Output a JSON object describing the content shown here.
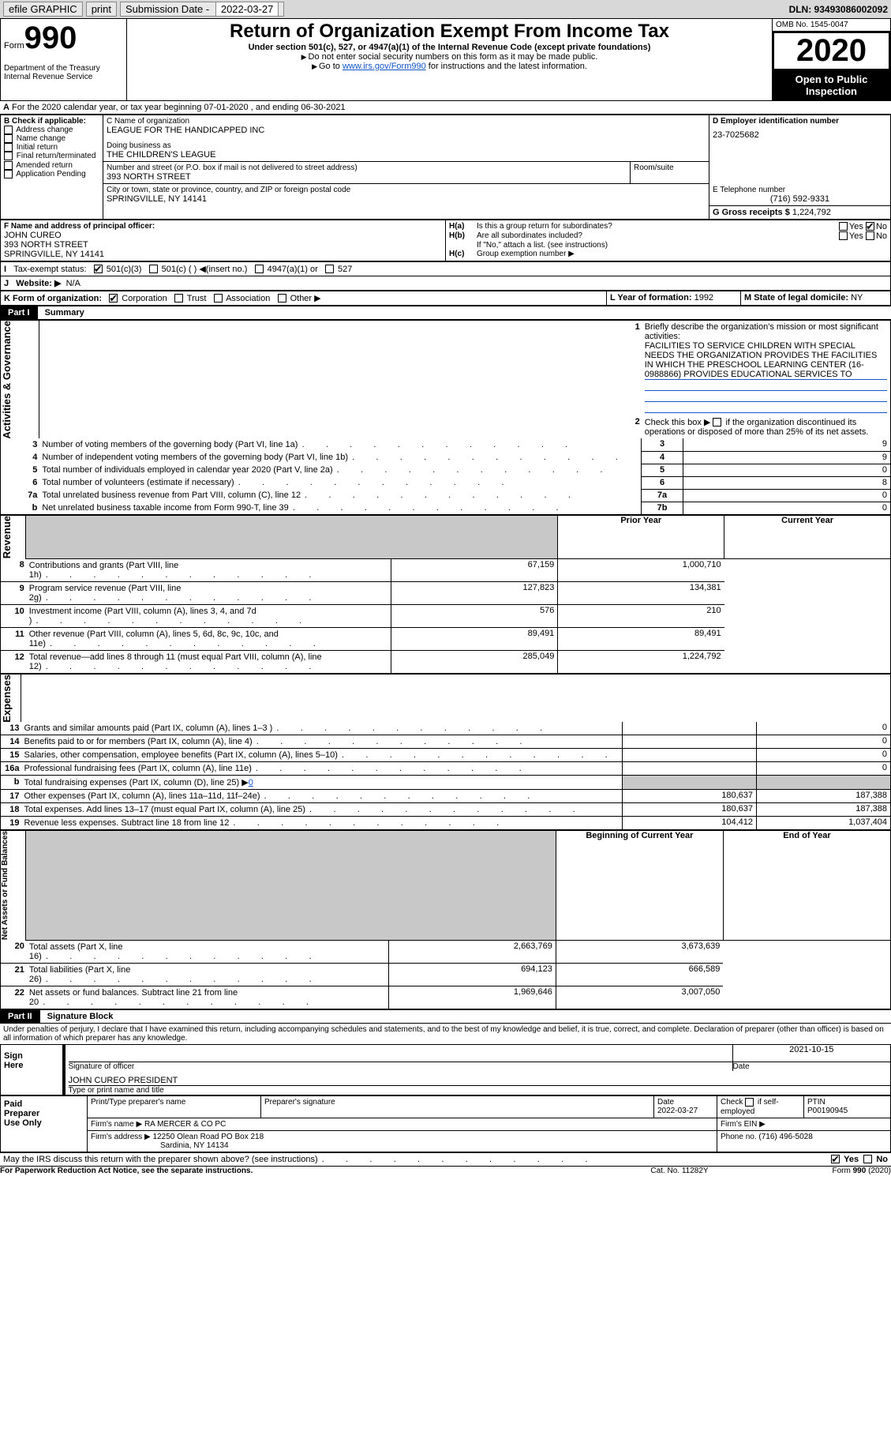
{
  "topbar": {
    "efile": "efile GRAPHIC",
    "print": "print",
    "subdate_lbl": "Submission Date -",
    "subdate": "2022-03-27",
    "dln": "DLN: 93493086002092"
  },
  "header": {
    "form": "990",
    "form_prefix": "Form",
    "dept": "Department of the Treasury\nInternal Revenue Service",
    "title": "Return of Organization Exempt From Income Tax",
    "sub1": "Under section 501(c), 527, or 4947(a)(1) of the Internal Revenue Code (except private foundations)",
    "sub2": "Do not enter social security numbers on this form as it may be made public.",
    "sub3_pre": "Go to ",
    "sub3_link": "www.irs.gov/Form990",
    "sub3_post": " for instructions and the latest information.",
    "omb": "OMB No. 1545-0047",
    "year": "2020",
    "openpub": "Open to Public Inspection"
  },
  "line_a": "For the 2020 calendar year, or tax year beginning 07-01-2020     , and ending 06-30-2021",
  "box_b": {
    "title": "B Check if applicable:",
    "items": [
      "Address change",
      "Name change",
      "Initial return",
      "Final return/terminated",
      "Amended return",
      "Application Pending"
    ]
  },
  "box_c": {
    "label_name": "C Name of organization",
    "name": "LEAGUE FOR THE HANDICAPPED INC",
    "dba_lbl": "Doing business as",
    "dba": "THE CHILDREN'S LEAGUE",
    "street_lbl": "Number and street (or P.O. box if mail is not delivered to street address)",
    "street": "393 NORTH STREET",
    "room_lbl": "Room/suite",
    "city_lbl": "City or town, state or province, country, and ZIP or foreign postal code",
    "city": "SPRINGVILLE, NY  14141"
  },
  "box_d": {
    "label": "D Employer identification number",
    "val": "23-7025682"
  },
  "box_e": {
    "label": "E Telephone number",
    "val": "(716) 592-9331"
  },
  "box_g": {
    "label": "G Gross receipts $",
    "val": "1,224,792"
  },
  "box_f": {
    "label": "F Name and address of principal officer:",
    "name": "JOHN CUREO",
    "street": "393 NORTH STREET",
    "city": "SPRINGVILLE, NY  14141"
  },
  "box_h": {
    "a_lbl": "Is this a group return for subordinates?",
    "b_lbl": "Are all subordinates included?",
    "b_note": "If \"No,\" attach a list. (see instructions)",
    "c_lbl": "Group exemption number ▶",
    "yes": "Yes",
    "no": "No"
  },
  "line_i": {
    "label": "Tax-exempt status:",
    "opts": [
      "501(c)(3)",
      "501(c) (   ) ◀(insert no.)",
      "4947(a)(1) or",
      "527"
    ]
  },
  "line_j": {
    "label": "Website: ▶",
    "val": "N/A"
  },
  "line_k": {
    "label": "K Form of organization:",
    "opts": [
      "Corporation",
      "Trust",
      "Association",
      "Other ▶"
    ]
  },
  "line_l": {
    "label": "L Year of formation:",
    "val": "1992"
  },
  "line_m": {
    "label": "M State of legal domicile:",
    "val": "NY"
  },
  "part1": {
    "label": "Part I",
    "title": "Summary",
    "q1": "Briefly describe the organization's mission or most significant activities:",
    "mission": "FACILITIES TO SERVICE CHILDREN WITH SPECIAL NEEDS THE ORGANIZATION PROVIDES THE FACILITIES IN WHICH THE PRESCHOOL LEARNING CENTER (16-0988866) PROVIDES EDUCATIONAL SERVICES TO",
    "q2": "Check this box ▶          if the organization discontinued its operations or disposed of more than 25% of its net assets.",
    "side_ag": "Activities & Governance",
    "side_rev": "Revenue",
    "side_exp": "Expenses",
    "side_na": "Net Assets or Fund Balances",
    "rows_ag": [
      {
        "n": "3",
        "t": "Number of voting members of the governing body (Part VI, line 1a)",
        "box": "3",
        "v": "9"
      },
      {
        "n": "4",
        "t": "Number of independent voting members of the governing body (Part VI, line 1b)",
        "box": "4",
        "v": "9"
      },
      {
        "n": "5",
        "t": "Total number of individuals employed in calendar year 2020 (Part V, line 2a)",
        "box": "5",
        "v": "0"
      },
      {
        "n": "6",
        "t": "Total number of volunteers (estimate if necessary)",
        "box": "6",
        "v": "8"
      },
      {
        "n": "7a",
        "t": "Total unrelated business revenue from Part VIII, column (C), line 12",
        "box": "7a",
        "v": "0"
      },
      {
        "n": "b",
        "t": "Net unrelated business taxable income from Form 990-T, line 39",
        "box": "7b",
        "v": "0"
      }
    ],
    "col_py": "Prior Year",
    "col_cy": "Current Year",
    "rows_rev": [
      {
        "n": "8",
        "t": "Contributions and grants (Part VIII, line 1h)",
        "py": "67,159",
        "cy": "1,000,710"
      },
      {
        "n": "9",
        "t": "Program service revenue (Part VIII, line 2g)",
        "py": "127,823",
        "cy": "134,381"
      },
      {
        "n": "10",
        "t": "Investment income (Part VIII, column (A), lines 3, 4, and 7d )",
        "py": "576",
        "cy": "210"
      },
      {
        "n": "11",
        "t": "Other revenue (Part VIII, column (A), lines 5, 6d, 8c, 9c, 10c, and 11e)",
        "py": "89,491",
        "cy": "89,491"
      },
      {
        "n": "12",
        "t": "Total revenue—add lines 8 through 11 (must equal Part VIII, column (A), line 12)",
        "py": "285,049",
        "cy": "1,224,792"
      }
    ],
    "rows_exp": [
      {
        "n": "13",
        "t": "Grants and similar amounts paid (Part IX, column (A), lines 1–3 )",
        "py": "",
        "cy": "0"
      },
      {
        "n": "14",
        "t": "Benefits paid to or for members (Part IX, column (A), line 4)",
        "py": "",
        "cy": "0"
      },
      {
        "n": "15",
        "t": "Salaries, other compensation, employee benefits (Part IX, column (A), lines 5–10)",
        "py": "",
        "cy": "0"
      },
      {
        "n": "16a",
        "t": "Professional fundraising fees (Part IX, column (A), line 11e)",
        "py": "",
        "cy": "0"
      },
      {
        "n": "b",
        "t": "Total fundraising expenses (Part IX, column (D), line 25) ▶",
        "v": "0",
        "grey": true
      },
      {
        "n": "17",
        "t": "Other expenses (Part IX, column (A), lines 11a–11d, 11f–24e)",
        "py": "180,637",
        "cy": "187,388"
      },
      {
        "n": "18",
        "t": "Total expenses. Add lines 13–17 (must equal Part IX, column (A), line 25)",
        "py": "180,637",
        "cy": "187,388"
      },
      {
        "n": "19",
        "t": "Revenue less expenses. Subtract line 18 from line 12",
        "py": "104,412",
        "cy": "1,037,404"
      }
    ],
    "col_boy": "Beginning of Current Year",
    "col_eoy": "End of Year",
    "rows_na": [
      {
        "n": "20",
        "t": "Total assets (Part X, line 16)",
        "py": "2,663,769",
        "cy": "3,673,639"
      },
      {
        "n": "21",
        "t": "Total liabilities (Part X, line 26)",
        "py": "694,123",
        "cy": "666,589"
      },
      {
        "n": "22",
        "t": "Net assets or fund balances. Subtract line 21 from line 20",
        "py": "1,969,646",
        "cy": "3,007,050"
      }
    ]
  },
  "part2": {
    "label": "Part II",
    "title": "Signature Block",
    "decl": "Under penalties of perjury, I declare that I have examined this return, including accompanying schedules and statements, and to the best of my knowledge and belief, it is true, correct, and complete. Declaration of preparer (other than officer) is based on all information of which preparer has any knowledge.",
    "sign_here": "Sign Here",
    "sig_officer": "Signature of officer",
    "sig_date": "2021-10-15",
    "date_lbl": "Date",
    "officer_name": "JOHN CUREO PRESIDENT",
    "officer_type_lbl": "Type or print name and title",
    "paid": "Paid Preparer Use Only",
    "prep_name_lbl": "Print/Type preparer's name",
    "prep_sig_lbl": "Preparer's signature",
    "prep_date_lbl": "Date",
    "prep_date": "2022-03-27",
    "self_emp": "Check          if self-employed",
    "ptin_lbl": "PTIN",
    "ptin": "P00190945",
    "firm_name_lbl": "Firm's name    ▶",
    "firm_name": "RA MERCER & CO PC",
    "firm_ein_lbl": "Firm's EIN ▶",
    "firm_addr_lbl": "Firm's address ▶",
    "firm_addr1": "12250 Olean Road PO Box 218",
    "firm_addr2": "Sardinia, NY  14134",
    "phone_lbl": "Phone no.",
    "phone": "(716) 496-5028",
    "irs_q": "May the IRS discuss this return with the preparer shown above? (see instructions)"
  },
  "footer": {
    "pra": "For Paperwork Reduction Act Notice, see the separate instructions.",
    "cat": "Cat. No. 11282Y",
    "form": "Form 990 (2020)"
  }
}
